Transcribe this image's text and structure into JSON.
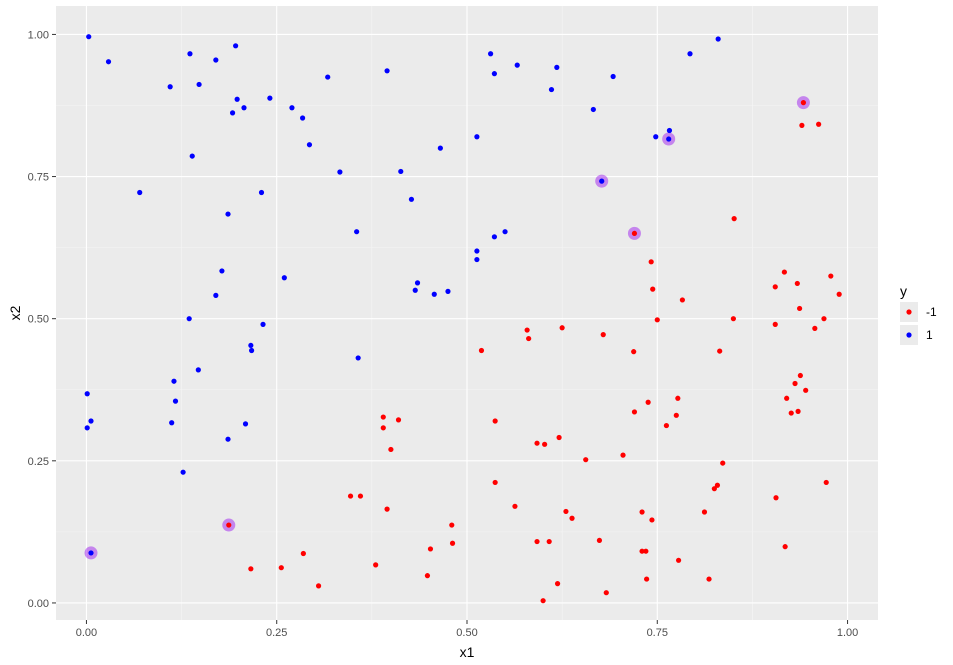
{
  "chart_data": {
    "type": "scatter",
    "title": "",
    "xlabel": "x1",
    "ylabel": "x2",
    "xlim": [
      -0.04,
      1.04
    ],
    "ylim": [
      -0.03,
      1.05
    ],
    "x_ticks": [
      0.0,
      0.25,
      0.5,
      0.75,
      1.0
    ],
    "x_tick_labels": [
      "0.00",
      "0.25",
      "0.50",
      "0.75",
      "1.00"
    ],
    "y_ticks": [
      0.0,
      0.25,
      0.5,
      0.75,
      1.0
    ],
    "y_tick_labels": [
      "0.00",
      "0.25",
      "0.50",
      "0.75",
      "1.00"
    ],
    "grid": true,
    "background": "#ebebeb",
    "legend": {
      "title": "y",
      "position": "right"
    },
    "series": [
      {
        "name": "-1",
        "color": "#ff0000",
        "points": [
          [
            0.216,
            0.06
          ],
          [
            0.256,
            0.062
          ],
          [
            0.285,
            0.087
          ],
          [
            0.305,
            0.03
          ],
          [
            0.347,
            0.188
          ],
          [
            0.36,
            0.188
          ],
          [
            0.38,
            0.067
          ],
          [
            0.39,
            0.327
          ],
          [
            0.39,
            0.308
          ],
          [
            0.395,
            0.165
          ],
          [
            0.4,
            0.27
          ],
          [
            0.41,
            0.322
          ],
          [
            0.448,
            0.048
          ],
          [
            0.452,
            0.095
          ],
          [
            0.48,
            0.137
          ],
          [
            0.481,
            0.105
          ],
          [
            0.519,
            0.444
          ],
          [
            0.537,
            0.32
          ],
          [
            0.537,
            0.212
          ],
          [
            0.563,
            0.17
          ],
          [
            0.579,
            0.48
          ],
          [
            0.581,
            0.465
          ],
          [
            0.592,
            0.281
          ],
          [
            0.592,
            0.108
          ],
          [
            0.6,
            0.004
          ],
          [
            0.602,
            0.279
          ],
          [
            0.608,
            0.108
          ],
          [
            0.619,
            0.034
          ],
          [
            0.621,
            0.291
          ],
          [
            0.625,
            0.484
          ],
          [
            0.63,
            0.161
          ],
          [
            0.638,
            0.149
          ],
          [
            0.656,
            0.252
          ],
          [
            0.674,
            0.11
          ],
          [
            0.679,
            0.472
          ],
          [
            0.683,
            0.018
          ],
          [
            0.705,
            0.26
          ],
          [
            0.719,
            0.442
          ],
          [
            0.72,
            0.336
          ],
          [
            0.73,
            0.16
          ],
          [
            0.73,
            0.091
          ],
          [
            0.735,
            0.091
          ],
          [
            0.736,
            0.042
          ],
          [
            0.738,
            0.353
          ],
          [
            0.742,
            0.6
          ],
          [
            0.743,
            0.146
          ],
          [
            0.744,
            0.552
          ],
          [
            0.75,
            0.498
          ],
          [
            0.762,
            0.312
          ],
          [
            0.775,
            0.33
          ],
          [
            0.777,
            0.36
          ],
          [
            0.778,
            0.075
          ],
          [
            0.783,
            0.533
          ],
          [
            0.812,
            0.16
          ],
          [
            0.818,
            0.042
          ],
          [
            0.825,
            0.201
          ],
          [
            0.829,
            0.207
          ],
          [
            0.832,
            0.443
          ],
          [
            0.836,
            0.246
          ],
          [
            0.85,
            0.5
          ],
          [
            0.851,
            0.676
          ],
          [
            0.905,
            0.556
          ],
          [
            0.905,
            0.49
          ],
          [
            0.906,
            0.185
          ],
          [
            0.917,
            0.582
          ],
          [
            0.918,
            0.099
          ],
          [
            0.92,
            0.36
          ],
          [
            0.926,
            0.334
          ],
          [
            0.931,
            0.386
          ],
          [
            0.934,
            0.562
          ],
          [
            0.935,
            0.337
          ],
          [
            0.937,
            0.518
          ],
          [
            0.938,
            0.4
          ],
          [
            0.94,
            0.84
          ],
          [
            0.945,
            0.374
          ],
          [
            0.957,
            0.483
          ],
          [
            0.962,
            0.842
          ],
          [
            0.969,
            0.5
          ],
          [
            0.972,
            0.212
          ],
          [
            0.978,
            0.575
          ],
          [
            0.989,
            0.543
          ],
          [
            0.187,
            0.137
          ],
          [
            0.72,
            0.65
          ],
          [
            0.942,
            0.88
          ]
        ]
      },
      {
        "name": "1",
        "color": "#0000ff",
        "points": [
          [
            0.003,
            0.996
          ],
          [
            0.029,
            0.952
          ],
          [
            0.07,
            0.722
          ],
          [
            0.11,
            0.908
          ],
          [
            0.136,
            0.966
          ],
          [
            0.139,
            0.786
          ],
          [
            0.148,
            0.912
          ],
          [
            0.17,
            0.955
          ],
          [
            0.186,
            0.684
          ],
          [
            0.192,
            0.862
          ],
          [
            0.196,
            0.98
          ],
          [
            0.198,
            0.886
          ],
          [
            0.207,
            0.871
          ],
          [
            0.23,
            0.722
          ],
          [
            0.241,
            0.888
          ],
          [
            0.27,
            0.871
          ],
          [
            0.284,
            0.853
          ],
          [
            0.293,
            0.806
          ],
          [
            0.317,
            0.925
          ],
          [
            0.333,
            0.758
          ],
          [
            0.355,
            0.653
          ],
          [
            0.395,
            0.936
          ],
          [
            0.413,
            0.759
          ],
          [
            0.427,
            0.71
          ],
          [
            0.465,
            0.8
          ],
          [
            0.513,
            0.82
          ],
          [
            0.531,
            0.966
          ],
          [
            0.536,
            0.931
          ],
          [
            0.566,
            0.946
          ],
          [
            0.611,
            0.903
          ],
          [
            0.618,
            0.942
          ],
          [
            0.666,
            0.868
          ],
          [
            0.692,
            0.926
          ],
          [
            0.748,
            0.82
          ],
          [
            0.766,
            0.831
          ],
          [
            0.793,
            0.966
          ],
          [
            0.83,
            0.992
          ],
          [
            0.001,
            0.368
          ],
          [
            0.001,
            0.308
          ],
          [
            0.006,
            0.32
          ],
          [
            0.112,
            0.317
          ],
          [
            0.115,
            0.39
          ],
          [
            0.117,
            0.355
          ],
          [
            0.127,
            0.23
          ],
          [
            0.135,
            0.5
          ],
          [
            0.147,
            0.41
          ],
          [
            0.17,
            0.541
          ],
          [
            0.178,
            0.584
          ],
          [
            0.186,
            0.288
          ],
          [
            0.209,
            0.315
          ],
          [
            0.216,
            0.453
          ],
          [
            0.217,
            0.444
          ],
          [
            0.232,
            0.49
          ],
          [
            0.26,
            0.572
          ],
          [
            0.357,
            0.431
          ],
          [
            0.432,
            0.55
          ],
          [
            0.435,
            0.563
          ],
          [
            0.457,
            0.543
          ],
          [
            0.475,
            0.548
          ],
          [
            0.513,
            0.619
          ],
          [
            0.513,
            0.604
          ],
          [
            0.536,
            0.644
          ],
          [
            0.55,
            0.653
          ],
          [
            0.006,
            0.088
          ],
          [
            0.677,
            0.742
          ],
          [
            0.765,
            0.816
          ]
        ]
      }
    ],
    "highlighted_points": [
      [
        0.006,
        0.088
      ],
      [
        0.187,
        0.137
      ],
      [
        0.677,
        0.742
      ],
      [
        0.72,
        0.65
      ],
      [
        0.765,
        0.816
      ],
      [
        0.942,
        0.88
      ]
    ],
    "highlight_color": "#a020f0"
  }
}
